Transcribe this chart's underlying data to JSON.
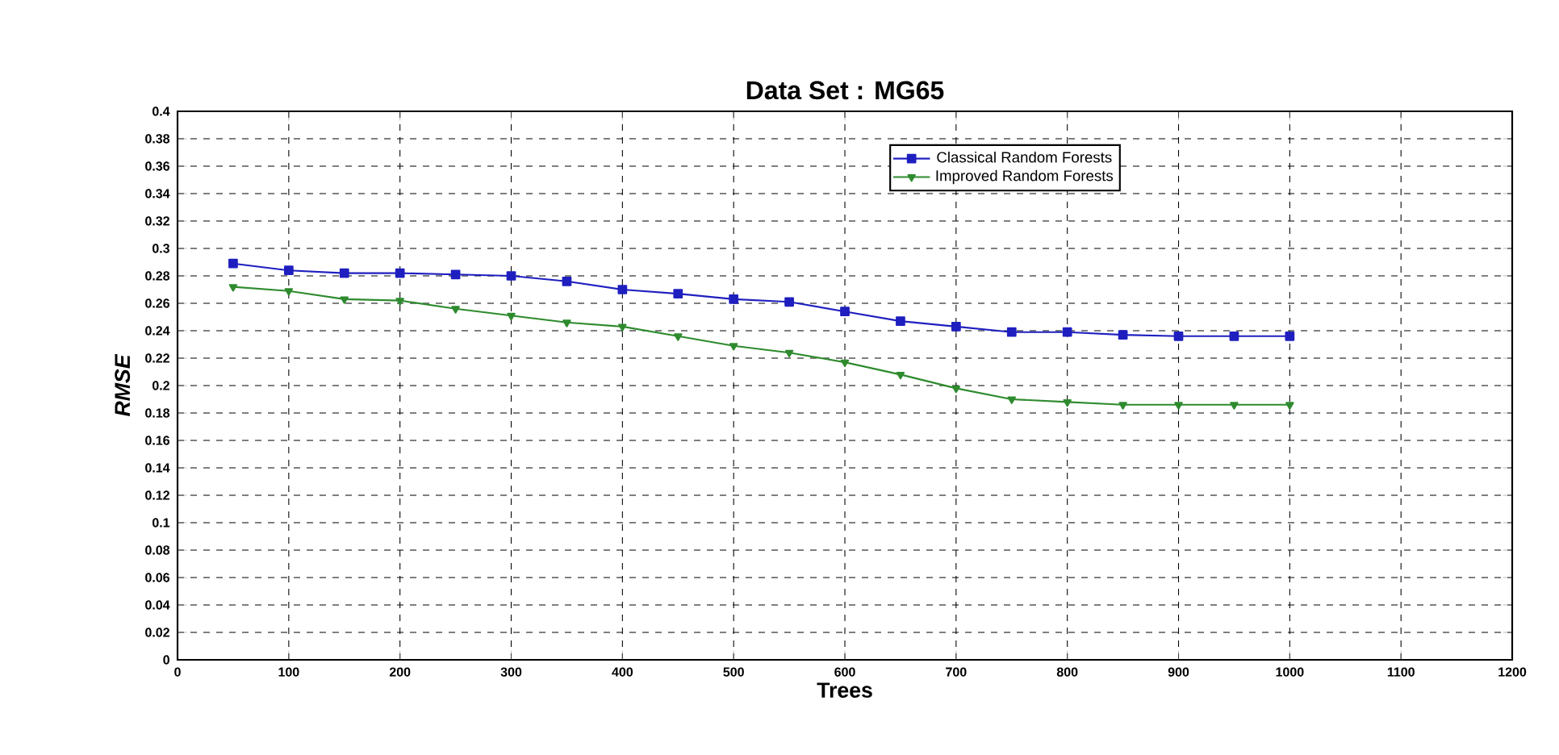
{
  "chart_data": {
    "type": "line",
    "title": "Data Set : MG65",
    "xlabel": "Trees",
    "ylabel": "RMSE",
    "x": [
      50,
      100,
      150,
      200,
      250,
      300,
      350,
      400,
      450,
      500,
      550,
      600,
      650,
      700,
      750,
      800,
      850,
      900,
      950,
      1000
    ],
    "series": [
      {
        "name": "Classical Random Forests",
        "color": "#1f1fc0",
        "marker": "square",
        "values": [
          0.289,
          0.284,
          0.282,
          0.282,
          0.281,
          0.28,
          0.276,
          0.27,
          0.267,
          0.263,
          0.261,
          0.254,
          0.247,
          0.243,
          0.239,
          0.239,
          0.237,
          0.236,
          0.236,
          0.236
        ]
      },
      {
        "name": "Improved Random Forests",
        "color": "#2e8b2e",
        "marker": "triangle",
        "values": [
          0.272,
          0.269,
          0.263,
          0.262,
          0.256,
          0.251,
          0.246,
          0.243,
          0.236,
          0.229,
          0.224,
          0.217,
          0.208,
          0.198,
          0.19,
          0.188,
          0.186,
          0.186,
          0.186,
          0.186
        ]
      }
    ],
    "xlim": [
      0,
      1200
    ],
    "xticks": [
      0,
      100,
      200,
      300,
      400,
      500,
      600,
      700,
      800,
      900,
      1000,
      1100,
      1200
    ],
    "ylim": [
      0,
      0.4
    ],
    "yticks": [
      0,
      0.02,
      0.04,
      0.06,
      0.08,
      0.1,
      0.12,
      0.14,
      0.16,
      0.18,
      0.2,
      0.22,
      0.24,
      0.26,
      0.28,
      0.3,
      0.32,
      0.34,
      0.36,
      0.38,
      0.4
    ],
    "grid": true,
    "line_style": "solid",
    "legend": "top right"
  }
}
